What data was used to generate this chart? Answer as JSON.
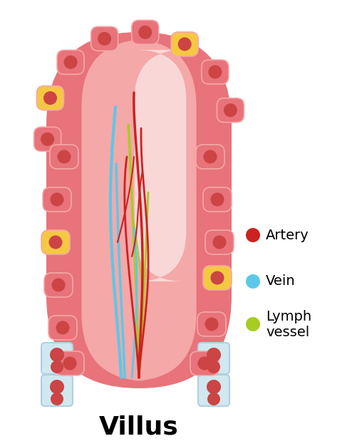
{
  "bg_color": "#ffffff",
  "title": "Villus",
  "title_fontsize": 26,
  "villus_outer_color": "#e8737a",
  "villus_inner_color": "#f5a8a8",
  "villus_highlight_color": "#fce0e0",
  "cell_body_color": "#e8737a",
  "cell_nucleus_color": "#cc4444",
  "cell_border_color": "#f5a8a8",
  "goblet_cell_color": "#f5c842",
  "artery_color": "#cc2222",
  "vein_color": "#5bc8e8",
  "lymph_color": "#a8cc22",
  "legend_artery_color": "#cc2222",
  "legend_vein_color": "#5bc8e8",
  "legend_lymph_color": "#a8cc22",
  "legend_artery_label": "Artery",
  "legend_vein_label": "Vein",
  "legend_lymph_label": "Lymph\nvessel",
  "base_cell_color": "#d0e8f0",
  "base_cell_border": "#b0d0e0"
}
